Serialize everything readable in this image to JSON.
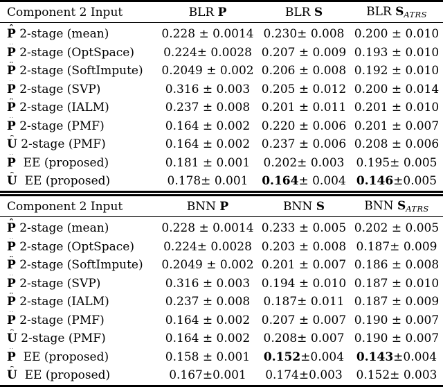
{
  "page": {
    "background": "#ffffff",
    "text_color": "#000000",
    "rule_color": "#000000"
  },
  "chart_data": {
    "type": "table",
    "note": "Two stacked result tables of mean ± std errors"
  },
  "tables": [
    {
      "id": "blr",
      "label_header": "Component 2 Input",
      "value_headers": [
        {
          "pre": "BLR ",
          "sym": "P",
          "sub": ""
        },
        {
          "pre": "BLR ",
          "sym": "S",
          "sub": ""
        },
        {
          "pre": "BLR ",
          "sym": "S",
          "sub": "ATRS"
        }
      ],
      "rows": [
        {
          "hat": "P",
          "label": "2-stage (mean)",
          "cells": [
            {
              "b": "",
              "t": "0.228 ± 0.0014"
            },
            {
              "b": "",
              "t": "0.230± 0.008"
            },
            {
              "b": "",
              "t": "0.200 ± 0.010"
            }
          ]
        },
        {
          "hat": "P",
          "label": "2-stage (OptSpace)",
          "cells": [
            {
              "b": "",
              "t": "0.224± 0.0028"
            },
            {
              "b": "",
              "t": "0.207 ± 0.009"
            },
            {
              "b": "",
              "t": "0.193 ± 0.010"
            }
          ]
        },
        {
          "hat": "P",
          "label": "2-stage (SoftImpute)",
          "cells": [
            {
              "b": "",
              "t": "0.2049 ± 0.002"
            },
            {
              "b": "",
              "t": "0.206 ± 0.008"
            },
            {
              "b": "",
              "t": "0.192 ± 0.010"
            }
          ]
        },
        {
          "hat": "P",
          "label": "2-stage (SVP)",
          "cells": [
            {
              "b": "",
              "t": "0.316 ± 0.003"
            },
            {
              "b": "",
              "t": "0.205 ± 0.012"
            },
            {
              "b": "",
              "t": "0.200 ± 0.014"
            }
          ]
        },
        {
          "hat": "P",
          "label": "2-stage (IALM)",
          "cells": [
            {
              "b": "",
              "t": "0.237 ± 0.008"
            },
            {
              "b": "",
              "t": "0.201 ± 0.011"
            },
            {
              "b": "",
              "t": "0.201 ± 0.010"
            }
          ]
        },
        {
          "hat": "P",
          "label": "2-stage (PMF)",
          "cells": [
            {
              "b": "",
              "t": "0.164 ± 0.002"
            },
            {
              "b": "",
              "t": "0.220 ± 0.006"
            },
            {
              "b": "",
              "t": "0.201 ± 0.007"
            }
          ]
        },
        {
          "hat": "U",
          "label": "2-stage (PMF)",
          "cells": [
            {
              "b": "",
              "t": "0.164 ± 0.002"
            },
            {
              "b": "",
              "t": "0.237 ± 0.006"
            },
            {
              "b": "",
              "t": "0.208 ± 0.006"
            }
          ]
        },
        {
          "hat": "P",
          "label": " EE (proposed)",
          "cells": [
            {
              "b": "",
              "t": "0.181 ± 0.001"
            },
            {
              "b": "",
              "t": "0.202± 0.003"
            },
            {
              "b": "",
              "t": "0.195± 0.005"
            }
          ]
        },
        {
          "hat": "U",
          "label": " EE (proposed)",
          "cells": [
            {
              "b": "",
              "t": "0.178± 0.001"
            },
            {
              "b": "0.164",
              "t": "± 0.004"
            },
            {
              "b": "0.146",
              "t": "±0.005"
            }
          ]
        }
      ]
    },
    {
      "id": "bnn",
      "label_header": "Component 2 Input",
      "value_headers": [
        {
          "pre": "BNN ",
          "sym": "P",
          "sub": ""
        },
        {
          "pre": "BNN ",
          "sym": "S",
          "sub": ""
        },
        {
          "pre": "BNN ",
          "sym": "S",
          "sub": "ATRS"
        }
      ],
      "rows": [
        {
          "hat": "P",
          "label": "2-stage (mean)",
          "cells": [
            {
              "b": "",
              "t": "0.228 ± 0.0014"
            },
            {
              "b": "",
              "t": "0.233 ± 0.005"
            },
            {
              "b": "",
              "t": "0.202 ± 0.005"
            }
          ]
        },
        {
          "hat": "P",
          "label": "2-stage (OptSpace)",
          "cells": [
            {
              "b": "",
              "t": "0.224± 0.0028"
            },
            {
              "b": "",
              "t": "0.203 ± 0.008"
            },
            {
              "b": "",
              "t": "0.187± 0.009"
            }
          ]
        },
        {
          "hat": "P",
          "label": "2-stage (SoftImpute)",
          "cells": [
            {
              "b": "",
              "t": "0.2049 ± 0.002"
            },
            {
              "b": "",
              "t": "0.201 ± 0.007"
            },
            {
              "b": "",
              "t": "0.186 ± 0.008"
            }
          ]
        },
        {
          "hat": "P",
          "label": "2-stage (SVP)",
          "cells": [
            {
              "b": "",
              "t": "0.316 ± 0.003"
            },
            {
              "b": "",
              "t": "0.194 ± 0.010"
            },
            {
              "b": "",
              "t": "0.187 ± 0.010"
            }
          ]
        },
        {
          "hat": "P",
          "label": "2-stage (IALM)",
          "cells": [
            {
              "b": "",
              "t": "0.237 ± 0.008"
            },
            {
              "b": "",
              "t": "0.187± 0.011"
            },
            {
              "b": "",
              "t": "0.187 ± 0.009"
            }
          ]
        },
        {
          "hat": "P",
          "label": "2-stage (PMF)",
          "cells": [
            {
              "b": "",
              "t": "0.164 ± 0.002"
            },
            {
              "b": "",
              "t": "0.207 ± 0.007"
            },
            {
              "b": "",
              "t": "0.190 ± 0.007"
            }
          ]
        },
        {
          "hat": "U",
          "label": "2-stage (PMF)",
          "cells": [
            {
              "b": "",
              "t": "0.164 ± 0.002"
            },
            {
              "b": "",
              "t": "0.208± 0.007"
            },
            {
              "b": "",
              "t": "0.190 ± 0.007"
            }
          ]
        },
        {
          "hat": "P",
          "label": " EE (proposed)",
          "cells": [
            {
              "b": "",
              "t": "0.158 ± 0.001"
            },
            {
              "b": "0.152",
              "t": "±0.004"
            },
            {
              "b": "0.143",
              "t": "±0.004"
            }
          ]
        },
        {
          "hat": "U",
          "label": " EE (proposed)",
          "cells": [
            {
              "b": "",
              "t": "0.167±0.001"
            },
            {
              "b": "",
              "t": "0.174±0.003"
            },
            {
              "b": "",
              "t": "0.152± 0.003"
            }
          ]
        }
      ]
    }
  ],
  "glyphs": {
    "hat_mark": "ˆ"
  }
}
